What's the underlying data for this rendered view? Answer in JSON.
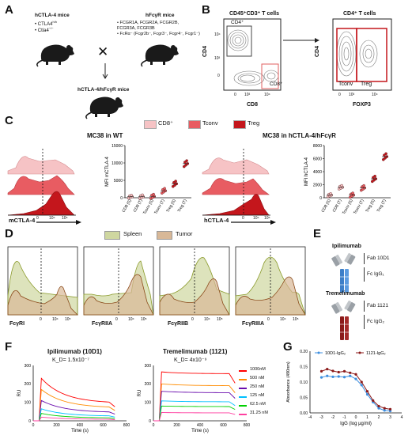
{
  "panels": {
    "a": "A",
    "b": "B",
    "c": "C",
    "d": "D",
    "e": "E",
    "f": "F",
    "g": "G"
  },
  "panel_a": {
    "mouse1_title": "hCTLA-4 mice",
    "mouse1_genes": [
      "CTLA4",
      "Ctla4"
    ],
    "mouse1_gene_sups": [
      "h/h",
      "−/−"
    ],
    "mouse2_title": "hFcγR mice",
    "mouse2_lines": [
      "FCGR1A",
      "FCGR2A",
      "FCGR2B",
      "FCGR3A",
      "FCGR3B",
      "FcRα",
      "(Fcgr2b",
      "Fcgr3",
      "Fcgr4",
      "Fcgr1"
    ],
    "mouse2_text": [
      "• FCGR1A, FCGR2A, FCGR2B,",
      "  FCGR3A, FCGR3B",
      "• FcRα⁻ (Fcgr2b⁻, Fcgr3⁻, Fcgr4⁻, Fcgr1⁻)"
    ],
    "cross": "✕",
    "result_title": "hCTLA-4/hFcγR mice"
  },
  "panel_b": {
    "gate1_title": "CD45⁺CD3⁺ T cells",
    "gate2_title": "CD4⁺ T cells",
    "cd4_gate": "CD4⁺",
    "cd8_gate": "CD8⁺",
    "tconv": "Tconv",
    "treg": "Treg",
    "x1": "CD8",
    "y1": "CD4",
    "x2": "FOXP3",
    "y2": "CD4",
    "ticks_y": [
      "10⁴",
      "10³",
      "0"
    ],
    "ticks_x": [
      "0",
      "10³",
      "10⁴"
    ]
  },
  "legend_c": {
    "items": [
      "CD8⁺",
      "Tconv",
      "Treg"
    ],
    "colors": [
      "#f6c3c5",
      "#e85c62",
      "#c4161c"
    ]
  },
  "panel_c": {
    "left_title": "MC38 in WT",
    "right_title": "MC38 in hCTLA-4/hFcγR",
    "left_xlabel": "mCTLA-4",
    "right_xlabel": "hCTLA-4",
    "ticks": [
      "0",
      "10⁴",
      "10⁵"
    ],
    "hist_ticks": [
      "0",
      "10⁴",
      "10⁵"
    ]
  },
  "chart_data": [
    {
      "type": "scatter",
      "title": "MC38 in WT",
      "ylabel": "MFI mCTLA-4",
      "categories": [
        "CD8 (S)",
        "CD8 (T)",
        "Tconv (S)",
        "Tconv (T)",
        "Treg (S)",
        "Treg (T)"
      ],
      "values": [
        300,
        300,
        400,
        2000,
        4000,
        9800
      ],
      "ylim": [
        0,
        15000
      ],
      "yticks": [
        "0",
        "5000",
        "10000",
        "15000"
      ]
    },
    {
      "type": "scatter",
      "title": "MC38 in hCTLA-4/hFcγR",
      "ylabel": "MFI hCTLA-4",
      "categories": [
        "CD8 (S)",
        "CD8 (T)",
        "Tconv (S)",
        "Tconv (T)",
        "Treg (S)",
        "Treg (T)"
      ],
      "values": [
        400,
        1600,
        400,
        1500,
        2900,
        6300
      ],
      "ylim": [
        0,
        8000
      ],
      "yticks": [
        "0",
        "2000",
        "4000",
        "6000",
        "8000"
      ]
    },
    {
      "type": "line",
      "title": "Ipilimumab (10D1)",
      "subtitle": "K_D= 1.5x10⁻⁷",
      "xlabel": "Time (s)",
      "ylabel": "RU",
      "xlim": [
        0,
        800
      ],
      "ylim": [
        0,
        300
      ],
      "xticks": [
        "0",
        "200",
        "400",
        "600",
        "800"
      ],
      "yticks": [
        "0",
        "100",
        "200",
        "300"
      ],
      "series": [
        {
          "name": "1000nM",
          "peak": 230,
          "end": 95,
          "color": "#ff0000"
        },
        {
          "name": "500 nM",
          "peak": 170,
          "end": 70,
          "color": "#ff8c00"
        },
        {
          "name": "250 nM",
          "peak": 110,
          "end": 45,
          "color": "#6a0dad"
        },
        {
          "name": "125 nM",
          "peak": 65,
          "end": 25,
          "color": "#00c0ff"
        },
        {
          "name": "62.5 nM",
          "peak": 40,
          "end": 15,
          "color": "#00d000"
        },
        {
          "name": "31.25 nM",
          "peak": 20,
          "end": 8,
          "color": "#ff3fa0"
        }
      ]
    },
    {
      "type": "line",
      "title": "Tremelimumab (1121)",
      "subtitle": "K_D= 4x10⁻⁹",
      "xlabel": "Time (s)",
      "ylabel": "RU",
      "xlim": [
        0,
        800
      ],
      "ylim": [
        0,
        300
      ],
      "xticks": [
        "0",
        "200",
        "400",
        "600",
        "800"
      ],
      "yticks": [
        "0",
        "100",
        "200",
        "300"
      ],
      "series": [
        {
          "name": "1000nM",
          "peak": 265,
          "end": 255,
          "color": "#ff0000"
        },
        {
          "name": "500 nM",
          "peak": 200,
          "end": 190,
          "color": "#ff8c00"
        },
        {
          "name": "250 nM",
          "peak": 160,
          "end": 152,
          "color": "#6a0dad"
        },
        {
          "name": "125 nM",
          "peak": 108,
          "end": 103,
          "color": "#00c0ff"
        },
        {
          "name": "62.5 nM",
          "peak": 80,
          "end": 77,
          "color": "#00d000"
        },
        {
          "name": "31.25 nM",
          "peak": 45,
          "end": 43,
          "color": "#ff3fa0"
        }
      ]
    },
    {
      "type": "line",
      "xlabel": "IgG (log μg/ml)",
      "ylabel": "Absorbance (490nm)",
      "x": [
        -3,
        -2.5,
        -2,
        -1.5,
        -1,
        -0.5,
        0,
        0.5,
        1,
        1.5,
        2,
        2.5,
        3
      ],
      "xlim": [
        -4,
        4
      ],
      "ylim": [
        0,
        0.2
      ],
      "xticks": [
        "-4",
        "-3",
        "-2",
        "-1",
        "0",
        "1",
        "2",
        "3",
        "4"
      ],
      "yticks": [
        "0.00",
        "0.05",
        "0.10",
        "0.15",
        "0.20"
      ],
      "series": [
        {
          "name": "10D1-IgG₂",
          "values": [
            0.115,
            0.12,
            0.117,
            0.118,
            0.116,
            0.12,
            0.11,
            0.09,
            0.06,
            0.035,
            0.015,
            0.008,
            0.006
          ],
          "color": "#3d8fe0"
        },
        {
          "name": "1121-IgG₂",
          "values": [
            0.135,
            0.142,
            0.136,
            0.132,
            0.135,
            0.13,
            0.125,
            0.1,
            0.07,
            0.04,
            0.022,
            0.015,
            0.012
          ],
          "color": "#8b1a1a"
        }
      ]
    }
  ],
  "legend_d": {
    "items": [
      "Spleen",
      "Tumor"
    ],
    "colors": [
      "#cfd7a0",
      "#d8b897"
    ]
  },
  "panel_d": {
    "xlabels": [
      "FcγRI",
      "FcγRIIA",
      "FcγRIIB",
      "FcγRIIIA"
    ],
    "ticks": [
      "0",
      "10⁴",
      "10⁵"
    ]
  },
  "panel_e": {
    "ab1": "Ipilimumab",
    "ab1_fab": "Fab 10D1",
    "ab1_fc": "Fc IgG₁",
    "ab2": "Tremelimumab",
    "ab2_fab": "Fab 1121",
    "ab2_fc": "Fc IgG₂"
  }
}
